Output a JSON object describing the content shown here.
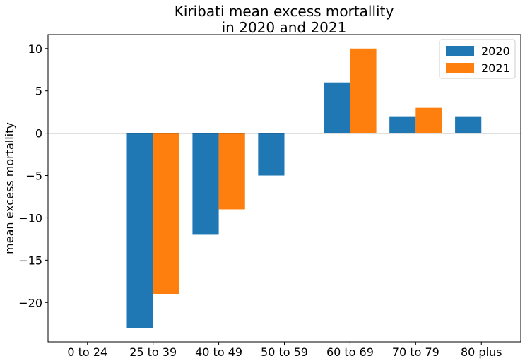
{
  "chart_data": {
    "type": "bar",
    "title_lines": [
      "Kiribati mean excess mortallity",
      "in 2020 and 2021"
    ],
    "xlabel": "",
    "ylabel": "mean excess mortallity",
    "categories": [
      "0 to 24",
      "25 to 39",
      "40 to 49",
      "50 to 59",
      "60 to 69",
      "70 to 79",
      "80 plus"
    ],
    "series": [
      {
        "name": "2020",
        "color": "#1f77b4",
        "values": [
          0,
          -23,
          -12,
          -5,
          6,
          2,
          2
        ]
      },
      {
        "name": "2021",
        "color": "#ff7f0e",
        "values": [
          0,
          -19,
          -9,
          0,
          10,
          3,
          0
        ]
      }
    ],
    "ylim": [
      -24.65,
      11.65
    ],
    "yticks": [
      -20,
      -15,
      -10,
      -5,
      0,
      5,
      10
    ],
    "ytick_labels": [
      "−20",
      "−15",
      "−10",
      "−5",
      "0",
      "5",
      "10"
    ],
    "grid": false,
    "legend_position": "top-right",
    "zero_line": true
  }
}
